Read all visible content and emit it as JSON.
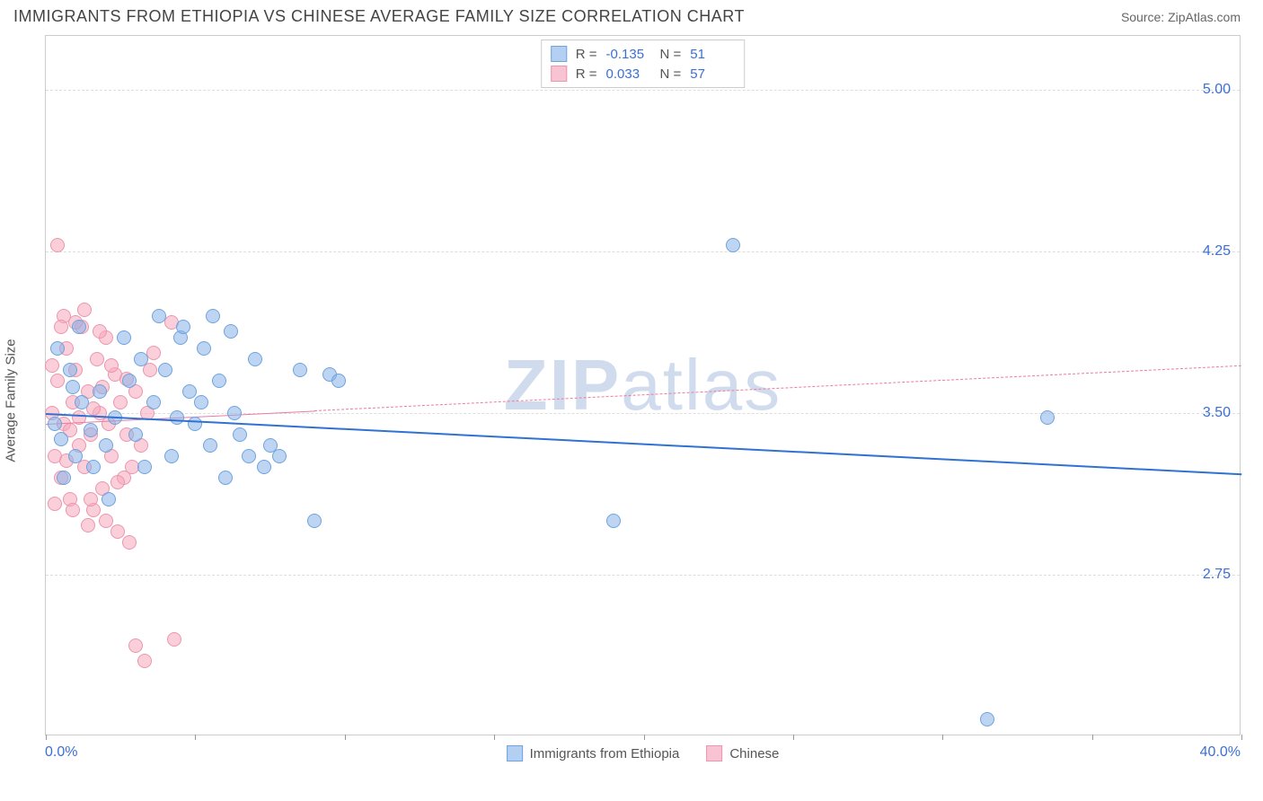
{
  "title": "IMMIGRANTS FROM ETHIOPIA VS CHINESE AVERAGE FAMILY SIZE CORRELATION CHART",
  "source_label": "Source:",
  "source_value": "ZipAtlas.com",
  "watermark": "ZIPatlas",
  "chart": {
    "type": "scatter",
    "xlim": [
      0,
      40
    ],
    "ylim": [
      2.0,
      5.25
    ],
    "ytick_positions": [
      2.75,
      3.5,
      4.25,
      5.0
    ],
    "ytick_labels": [
      "2.75",
      "3.50",
      "4.25",
      "5.00"
    ],
    "xtick_positions": [
      0,
      5,
      10,
      15,
      20,
      25,
      30,
      35,
      40
    ],
    "xlabel_min": "0.0%",
    "xlabel_max": "40.0%",
    "ylabel": "Average Family Size",
    "background_color": "#ffffff",
    "grid_color": "#dddddd",
    "series_a": {
      "name": "Immigrants from Ethiopia",
      "color_fill": "rgba(135,178,232,0.55)",
      "color_stroke": "#6fa3dd",
      "swatch_fill": "#b3d0f2",
      "swatch_stroke": "#6fa3dd",
      "point_radius": 8,
      "R": "-0.135",
      "N": "51",
      "regression": {
        "x1": 0,
        "y1": 3.5,
        "x2": 40,
        "y2": 3.22,
        "solid_until_x": 40,
        "line_color": "#2f72d4",
        "line_width": 2
      },
      "points": [
        [
          0.3,
          3.45
        ],
        [
          0.5,
          3.38
        ],
        [
          0.8,
          3.7
        ],
        [
          1.0,
          3.3
        ],
        [
          1.2,
          3.55
        ],
        [
          0.6,
          3.2
        ],
        [
          1.5,
          3.42
        ],
        [
          1.8,
          3.6
        ],
        [
          2.0,
          3.35
        ],
        [
          2.3,
          3.48
        ],
        [
          0.4,
          3.8
        ],
        [
          1.1,
          3.9
        ],
        [
          2.6,
          3.85
        ],
        [
          3.0,
          3.4
        ],
        [
          3.3,
          3.25
        ],
        [
          3.6,
          3.55
        ],
        [
          4.0,
          3.7
        ],
        [
          4.2,
          3.3
        ],
        [
          4.5,
          3.85
        ],
        [
          4.8,
          3.6
        ],
        [
          5.0,
          3.45
        ],
        [
          5.3,
          3.8
        ],
        [
          5.5,
          3.35
        ],
        [
          5.8,
          3.65
        ],
        [
          3.8,
          3.95
        ],
        [
          4.6,
          3.9
        ],
        [
          6.0,
          3.2
        ],
        [
          6.3,
          3.5
        ],
        [
          6.5,
          3.4
        ],
        [
          6.8,
          3.3
        ],
        [
          7.0,
          3.75
        ],
        [
          7.3,
          3.25
        ],
        [
          7.5,
          3.35
        ],
        [
          5.2,
          3.55
        ],
        [
          6.2,
          3.88
        ],
        [
          7.8,
          3.3
        ],
        [
          8.5,
          3.7
        ],
        [
          4.4,
          3.48
        ],
        [
          2.8,
          3.65
        ],
        [
          9.0,
          3.0
        ],
        [
          9.5,
          3.68
        ],
        [
          9.8,
          3.65
        ],
        [
          5.6,
          3.95
        ],
        [
          19.0,
          3.0
        ],
        [
          23.0,
          4.28
        ],
        [
          33.5,
          3.48
        ],
        [
          31.5,
          2.08
        ],
        [
          3.2,
          3.75
        ],
        [
          1.6,
          3.25
        ],
        [
          2.1,
          3.1
        ],
        [
          0.9,
          3.62
        ]
      ]
    },
    "series_b": {
      "name": "Chinese",
      "color_fill": "rgba(247,168,188,0.55)",
      "color_stroke": "#ec95af",
      "swatch_fill": "#f8c3d2",
      "swatch_stroke": "#ec95af",
      "point_radius": 8,
      "R": "0.033",
      "N": "57",
      "regression": {
        "x1": 0,
        "y1": 3.45,
        "x2": 40,
        "y2": 3.72,
        "solid_until_x": 9,
        "line_color": "#ec7c9e",
        "line_width": 1.5
      },
      "points": [
        [
          0.2,
          3.5
        ],
        [
          0.3,
          3.3
        ],
        [
          0.4,
          3.65
        ],
        [
          0.5,
          3.2
        ],
        [
          0.6,
          3.45
        ],
        [
          0.7,
          3.8
        ],
        [
          0.8,
          3.1
        ],
        [
          0.9,
          3.55
        ],
        [
          1.0,
          3.7
        ],
        [
          1.1,
          3.35
        ],
        [
          1.2,
          3.9
        ],
        [
          1.3,
          3.25
        ],
        [
          1.4,
          3.6
        ],
        [
          1.5,
          3.4
        ],
        [
          1.6,
          3.05
        ],
        [
          1.7,
          3.75
        ],
        [
          1.8,
          3.5
        ],
        [
          1.9,
          3.15
        ],
        [
          2.0,
          3.85
        ],
        [
          2.1,
          3.45
        ],
        [
          2.2,
          3.3
        ],
        [
          2.3,
          3.68
        ],
        [
          2.4,
          2.95
        ],
        [
          2.5,
          3.55
        ],
        [
          2.6,
          3.2
        ],
        [
          2.7,
          3.4
        ],
        [
          2.8,
          2.9
        ],
        [
          0.4,
          4.28
        ],
        [
          0.6,
          3.95
        ],
        [
          2.0,
          3.0
        ],
        [
          1.0,
          3.92
        ],
        [
          3.0,
          3.6
        ],
        [
          3.2,
          3.35
        ],
        [
          3.4,
          3.5
        ],
        [
          3.6,
          3.78
        ],
        [
          4.2,
          3.92
        ],
        [
          1.3,
          3.98
        ],
        [
          0.8,
          3.42
        ],
        [
          3.0,
          2.42
        ],
        [
          3.3,
          2.35
        ],
        [
          4.3,
          2.45
        ],
        [
          1.5,
          3.1
        ],
        [
          0.5,
          3.9
        ],
        [
          2.9,
          3.25
        ],
        [
          1.8,
          3.88
        ],
        [
          0.3,
          3.08
        ],
        [
          1.1,
          3.48
        ],
        [
          2.2,
          3.72
        ],
        [
          0.7,
          3.28
        ],
        [
          1.9,
          3.62
        ],
        [
          2.4,
          3.18
        ],
        [
          0.9,
          3.05
        ],
        [
          1.6,
          3.52
        ],
        [
          2.7,
          3.66
        ],
        [
          0.2,
          3.72
        ],
        [
          1.4,
          2.98
        ],
        [
          3.5,
          3.7
        ]
      ]
    },
    "legend_bottom_items": [
      {
        "label": "Immigrants from Ethiopia",
        "fill": "#b3d0f2",
        "stroke": "#6fa3dd"
      },
      {
        "label": "Chinese",
        "fill": "#f8c3d2",
        "stroke": "#ec95af"
      }
    ]
  }
}
